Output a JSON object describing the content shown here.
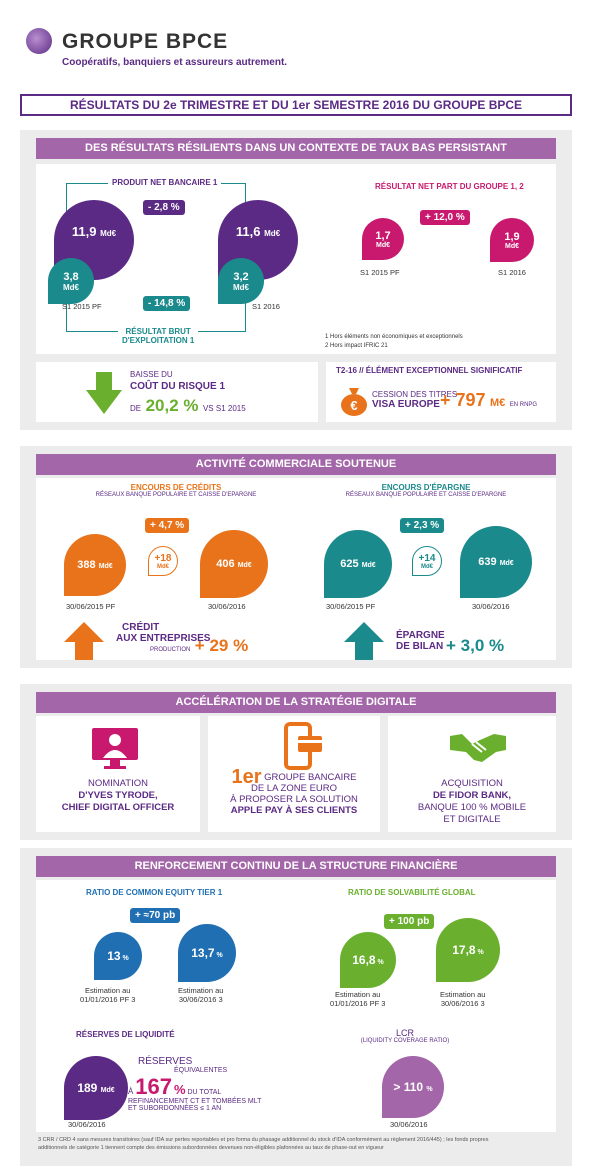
{
  "header": {
    "brand": "GROUPE BPCE",
    "tagline": "Coopératifs, banquiers et assureurs autrement."
  },
  "title": "RÉSULTATS DU 2e TRIMESTRE ET DU 1er SEMESTRE 2016 DU GROUPE BPCE",
  "s1": {
    "banner": "DES RÉSULTATS RÉSILIENTS DANS UN CONTEXTE DE TAUX BAS PERSISTANT",
    "pnb_label": "PRODUIT NET BANCAIRE 1",
    "pnb_change": "- 2,8 %",
    "pnb_left": "11,9",
    "pnb_right": "11,6",
    "unit": "Md€",
    "rbe_left": "3,8",
    "rbe_right": "3,2",
    "rbe_change": "- 14,8 %",
    "period_left": "S1 2015 PF",
    "period_right": "S1 2016",
    "rbe_label1": "RÉSULTAT BRUT",
    "rbe_label2": "D'EXPLOITATION 1",
    "rn_label": "RÉSULTAT NET PART DU GROUPE 1, 2",
    "rn_change": "+ 12,0 %",
    "rn_left": "1,7",
    "rn_right": "1,9",
    "rn_period_left": "S1 2015 PF",
    "rn_period_right": "S1 2016",
    "note1": "1 Hors éléments non économiques et exceptionnels",
    "note2": "2 Hors impact IFRIC 21",
    "cr_line1": "BAISSE DU",
    "cr_line2": "COÛT DU RISQUE 1",
    "cr_de": "DE",
    "cr_value": "20,2 %",
    "cr_vs": "VS S1 2015",
    "ex_title": "T2-16 // ÉLÉMENT EXCEPTIONNEL SIGNIFICATIF",
    "ex_line1": "CESSION DES TITRES",
    "ex_line2": "VISA EUROPE",
    "ex_value": "+ 797",
    "ex_unit": "M€",
    "ex_suffix": "EN RNPG",
    "euro": "€"
  },
  "s2": {
    "banner": "ACTIVITÉ COMMERCIALE SOUTENUE",
    "credits_title": "ENCOURS DE CRÉDITS",
    "credits_sub": "RÉSEAUX BANQUE POPULAIRE ET CAISSE D'EPARGNE",
    "credits_change": "+ 4,7 %",
    "credits_left": "388",
    "credits_right": "406",
    "credits_delta": "+18",
    "delta_unit": "Md€",
    "unit": "Md€",
    "date_left": "30/06/2015 PF",
    "date_right": "30/06/2016",
    "epargne_title": "ENCOURS D'ÉPARGNE",
    "epargne_sub": "RÉSEAUX BANQUE POPULAIRE ET CAISSE D'EPARGNE",
    "epargne_change": "+ 2,3 %",
    "epargne_left": "625",
    "epargne_right": "639",
    "epargne_delta": "+14",
    "credit_ent1": "CRÉDIT",
    "credit_ent2": "AUX ENTREPRISES",
    "credit_ent3": "PRODUCTION",
    "credit_ent_value": "+ 29 %",
    "ep_bilan1": "ÉPARGNE",
    "ep_bilan2": "DE BILAN",
    "ep_bilan_value": "+ 3,0 %"
  },
  "s3": {
    "banner": "ACCÉLÉRATION DE LA STRATÉGIE DIGITALE",
    "c1_line1": "NOMINATION",
    "c1_line2": "D'YVES TYRODE,",
    "c1_line3": "CHIEF DIGITAL OFFICER",
    "c2_rank": "1er",
    "c2_line1": "GROUPE BANCAIRE",
    "c2_line2": "DE LA ZONE EURO",
    "c2_line3": "À PROPOSER LA SOLUTION",
    "c2_line4": "APPLE PAY À SES CLIENTS",
    "c3_line1": "ACQUISITION",
    "c3_line2": "DE FIDOR BANK,",
    "c3_line3": "BANQUE 100 % MOBILE",
    "c3_line4": "ET DIGITALE"
  },
  "s4": {
    "banner": "RENFORCEMENT CONTINU DE LA STRUCTURE FINANCIÈRE",
    "cet1_title": "RATIO DE COMMON EQUITY TIER 1",
    "cet1_change": "+ ≈70 pb",
    "cet1_left": "13",
    "cet1_right": "13,7",
    "pct": "%",
    "cet1_date_left1": "Estimation au",
    "cet1_date_left2": "01/01/2016 PF 3",
    "cet1_date_right1": "Estimation au",
    "cet1_date_right2": "30/06/2016 3",
    "solv_title": "RATIO DE SOLVABILITÉ GLOBAL",
    "solv_change": "+ 100 pb",
    "solv_left": "16,8",
    "solv_right": "17,8",
    "liq_title": "RÉSERVES DE LIQUIDITÉ",
    "liq_value": "189",
    "liq_unit": "Md€",
    "liq_date": "30/06/2016",
    "res1": "RÉSERVES",
    "res2": "ÉQUIVALENTES",
    "res_a": "À",
    "res_value": "167",
    "res3": "DU TOTAL",
    "res4": "REFINANCEMENT CT ET TOMBÉES MLT",
    "res5": "ET SUBORDONNÉES ≤ 1 AN",
    "lcr_title": "LCR",
    "lcr_sub": "(LIQUIDITY COVERAGE RATIO)",
    "lcr_value": "> 110",
    "lcr_date": "30/06/2016",
    "footnote1": "3 CRR / CRD 4 sans mesures transitoires (sauf IDA sur pertes reportables et pro forma du phasage additionnel du stock d'IDA conformément au règlement 2016/445) ; les fonds propres",
    "footnote2": "additionnels de catégorie 1 tiennent compte des émissions subordonnées devenues non-éligibles plafonnées au taux de phase-out en vigueur"
  },
  "colors": {
    "purple": "#5b2a84",
    "teal": "#1a8a8c",
    "magenta": "#c8196e",
    "orange": "#e8731b",
    "green": "#6ab02e",
    "blue": "#1f6fb2",
    "banner": "#a366a8"
  }
}
